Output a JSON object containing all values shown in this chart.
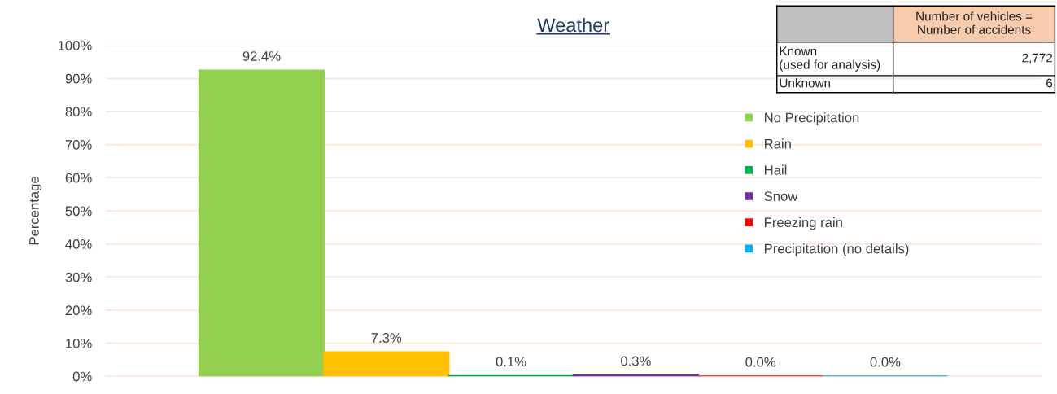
{
  "chart_data": {
    "type": "bar",
    "title": "Weather",
    "ylabel": "Percentage",
    "categories": [
      null
    ],
    "series": [
      {
        "name": "No Precipitation",
        "color": "#92d050",
        "values": [
          92.4
        ],
        "value_labels": [
          "92.4%"
        ]
      },
      {
        "name": "Rain",
        "color": "#ffc000",
        "values": [
          7.3
        ],
        "value_labels": [
          "7.3%"
        ]
      },
      {
        "name": "Hail",
        "color": "#00b050",
        "values": [
          0.1
        ],
        "value_labels": [
          "0.1%"
        ]
      },
      {
        "name": "Snow",
        "color": "#7030a0",
        "values": [
          0.3
        ],
        "value_labels": [
          "0.3%"
        ]
      },
      {
        "name": "Freezing rain",
        "color": "#ff0000",
        "values": [
          0.0
        ],
        "value_labels": [
          "0.0%"
        ]
      },
      {
        "name": "Precipitation (no details)",
        "color": "#00b0f0",
        "values": [
          0.0
        ],
        "value_labels": [
          "0.0%"
        ]
      }
    ],
    "ylim": [
      0,
      100
    ],
    "yticks": [
      {
        "value": 0,
        "label": "0%"
      },
      {
        "value": 10,
        "label": "10%"
      },
      {
        "value": 20,
        "label": "20%"
      },
      {
        "value": 30,
        "label": "30%"
      },
      {
        "value": 40,
        "label": "40%"
      },
      {
        "value": 50,
        "label": "50%"
      },
      {
        "value": 60,
        "label": "60%"
      },
      {
        "value": 70,
        "label": "70%"
      },
      {
        "value": 80,
        "label": "80%"
      },
      {
        "value": 90,
        "label": "90%"
      },
      {
        "value": 100,
        "label": "100%"
      }
    ],
    "grid": "y",
    "legend": "right",
    "annotations": [
      "Number of vehicles =\nNumber of accidents",
      "Known\n(used for analysis)",
      "2,772",
      "Unknown",
      "6"
    ]
  }
}
